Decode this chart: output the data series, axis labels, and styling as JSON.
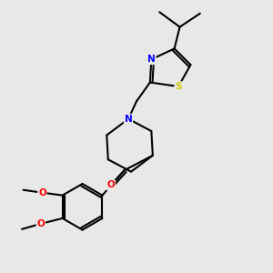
{
  "bg_color": "#e8e8e8",
  "bond_color": "#000000",
  "atom_colors": {
    "N": "#0000FF",
    "O": "#FF0000",
    "S": "#CCCC00",
    "C": "#000000"
  },
  "bond_width": 1.5,
  "font_size_atoms": 8
}
